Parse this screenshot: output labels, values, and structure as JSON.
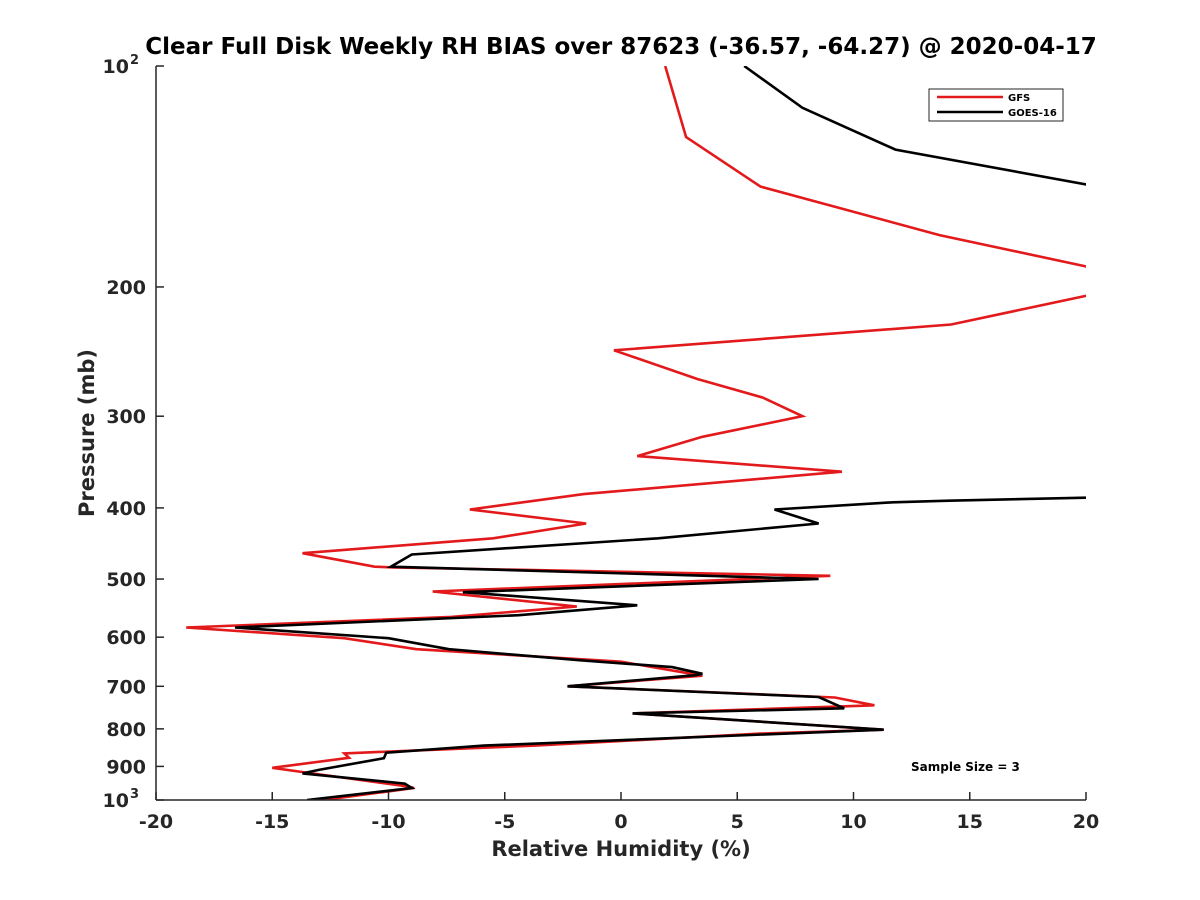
{
  "chart_data": {
    "type": "line",
    "title": "Clear Full Disk Weekly RH BIAS over 87623 (-36.57, -64.27) @ 2020-04-17",
    "xlabel": "Relative Humidity (%)",
    "ylabel": "Pressure (mb)",
    "xlim": [
      -20,
      20
    ],
    "ylim": [
      100,
      1000
    ],
    "y_scale": "log",
    "y_reversed": true,
    "grid": false,
    "legend_position": "top-right",
    "x_ticks": [
      {
        "value": -20,
        "label": "-20"
      },
      {
        "value": -15,
        "label": "-15"
      },
      {
        "value": -10,
        "label": "-10"
      },
      {
        "value": -5,
        "label": "-5"
      },
      {
        "value": 0,
        "label": "0"
      },
      {
        "value": 5,
        "label": "5"
      },
      {
        "value": 10,
        "label": "10"
      },
      {
        "value": 15,
        "label": "15"
      },
      {
        "value": 20,
        "label": "20"
      }
    ],
    "y_ticks": [
      {
        "value": 100,
        "base": "10",
        "exp": "2"
      },
      {
        "value": 200,
        "base": "200",
        "exp": ""
      },
      {
        "value": 300,
        "base": "300",
        "exp": ""
      },
      {
        "value": 400,
        "base": "400",
        "exp": ""
      },
      {
        "value": 500,
        "base": "500",
        "exp": ""
      },
      {
        "value": 600,
        "base": "600",
        "exp": ""
      },
      {
        "value": 700,
        "base": "700",
        "exp": ""
      },
      {
        "value": 800,
        "base": "800",
        "exp": ""
      },
      {
        "value": 900,
        "base": "900",
        "exp": ""
      },
      {
        "value": 1000,
        "base": "10",
        "exp": "3"
      }
    ],
    "annotation": "Sample Size = 3",
    "series": [
      {
        "name": "GFS",
        "color": "#e31a1c",
        "points": [
          [
            1.9,
            100
          ],
          [
            2.8,
            125
          ],
          [
            6.0,
            146
          ],
          [
            13.7,
            170
          ],
          [
            20.5,
            189
          ],
          [
            20.2,
            205
          ],
          [
            14.2,
            225
          ],
          [
            -0.3,
            244
          ],
          [
            3.3,
            267
          ],
          [
            6.1,
            283
          ],
          [
            7.8,
            300
          ],
          [
            3.5,
            320
          ],
          [
            0.7,
            340
          ],
          [
            9.5,
            357
          ],
          [
            -1.6,
            383
          ],
          [
            -6.5,
            402
          ],
          [
            -1.5,
            420
          ],
          [
            -5.5,
            440
          ],
          [
            -13.7,
            461
          ],
          [
            -10.6,
            481
          ],
          [
            -9.8,
            482
          ],
          [
            9.0,
            495
          ],
          [
            -8.1,
            520
          ],
          [
            -1.9,
            545
          ],
          [
            -7.3,
            563
          ],
          [
            -18.7,
            582
          ],
          [
            -11.9,
            602
          ],
          [
            -8.8,
            623
          ],
          [
            0.0,
            648
          ],
          [
            3.5,
            677
          ],
          [
            -2.3,
            700
          ],
          [
            9.2,
            725
          ],
          [
            10.9,
            743
          ],
          [
            0.5,
            762
          ],
          [
            11.3,
            802
          ],
          [
            6.0,
            812
          ],
          [
            -3.7,
            843
          ],
          [
            -11.9,
            864
          ],
          [
            -11.7,
            876
          ],
          [
            -15.0,
            904
          ],
          [
            -13.6,
            917
          ],
          [
            -9.2,
            958
          ],
          [
            -8.9,
            963
          ],
          [
            -12.8,
            1000
          ]
        ]
      },
      {
        "name": "GOES-16",
        "color": "#000000",
        "points": [
          [
            5.3,
            100
          ],
          [
            7.8,
            114
          ],
          [
            11.8,
            130
          ],
          [
            20.5,
            146
          ],
          [
            20.5,
            387
          ],
          [
            14.1,
            391
          ],
          [
            11.7,
            393
          ],
          [
            6.6,
            402
          ],
          [
            8.5,
            420
          ],
          [
            1.6,
            440
          ],
          [
            -9.0,
            463
          ],
          [
            -9.9,
            481
          ],
          [
            8.5,
            500
          ],
          [
            -6.8,
            521
          ],
          [
            0.7,
            543
          ],
          [
            -4.4,
            560
          ],
          [
            -16.6,
            582
          ],
          [
            -10.0,
            602
          ],
          [
            -7.4,
            623
          ],
          [
            -1.8,
            645
          ],
          [
            2.2,
            659
          ],
          [
            3.5,
            673
          ],
          [
            3.2,
            676
          ],
          [
            -2.3,
            700
          ],
          [
            8.5,
            724
          ],
          [
            9.6,
            750
          ],
          [
            0.5,
            762
          ],
          [
            11.3,
            802
          ],
          [
            -5.9,
            843
          ],
          [
            -10.1,
            862
          ],
          [
            -10.2,
            877
          ],
          [
            -13.0,
            910
          ],
          [
            -13.7,
            920
          ],
          [
            -9.3,
            950
          ],
          [
            -9.0,
            963
          ],
          [
            -13.5,
            1000
          ]
        ]
      }
    ]
  }
}
